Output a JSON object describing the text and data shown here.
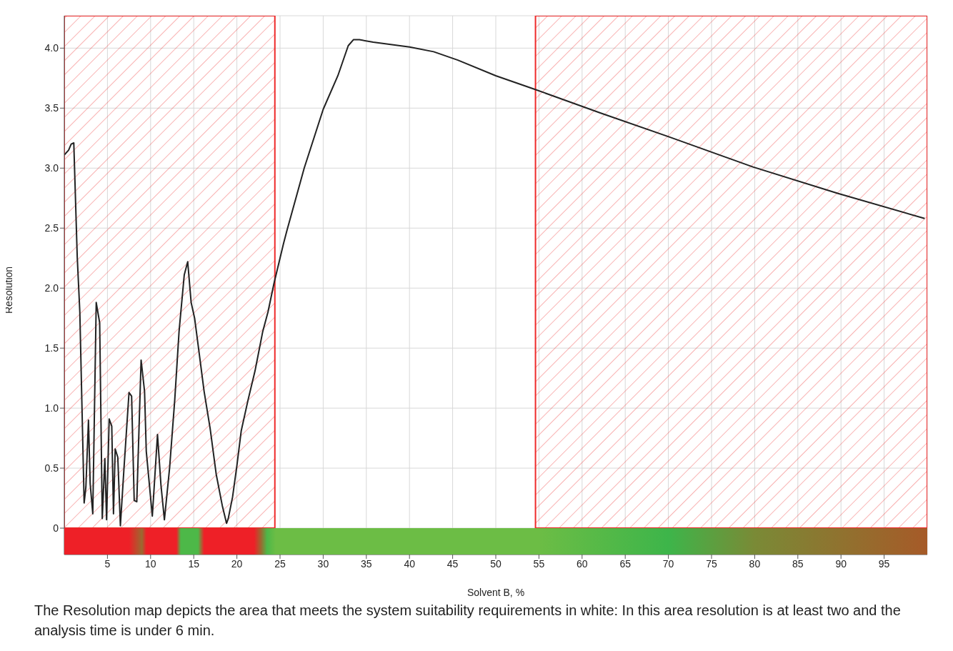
{
  "chart_data": {
    "type": "line",
    "xlabel": "Solvent B, %",
    "ylabel": "Resolution",
    "annotations": [
      "The Resolution map depicts the area that meets the system suitability requirements in white: In this area resolution is at least two and the analysis time is under 6 min."
    ],
    "x": [
      0,
      0.5,
      0.8,
      1.1,
      1.5,
      1.8,
      2.3,
      2.5,
      2.8,
      3.0,
      3.3,
      3.7,
      4.1,
      4.4,
      4.7,
      4.9,
      5.2,
      5.5,
      5.7,
      5.9,
      6.2,
      6.5,
      6.9,
      7.5,
      7.8,
      8.1,
      8.4,
      8.9,
      9.3,
      9.5,
      10.2,
      10.8,
      11.2,
      11.6,
      12.2,
      12.8,
      13.3,
      13.9,
      14.3,
      14.7,
      15.1,
      15.5,
      16.2,
      16.9,
      17.6,
      18.3,
      18.8,
      19.0,
      19.5,
      20.0,
      20.5,
      21.3,
      22.1,
      23.0,
      23.6,
      24.3,
      25.4,
      25.8,
      27.8,
      30.0,
      31.7,
      32.9,
      33.5,
      34.2,
      35.8,
      40.0,
      42.8,
      45.6,
      50.0,
      54.4,
      56.7,
      62.1,
      70.1,
      79.8,
      89.6,
      99.7
    ],
    "series": [
      {
        "color": "#222222",
        "values": [
          3.11,
          3.15,
          3.2,
          3.21,
          2.26,
          1.8,
          0.21,
          0.34,
          0.9,
          0.37,
          0.12,
          1.88,
          1.71,
          0.08,
          0.58,
          0.07,
          0.91,
          0.85,
          0.12,
          0.66,
          0.59,
          0.02,
          0.48,
          1.13,
          1.1,
          0.23,
          0.22,
          1.4,
          1.14,
          0.64,
          0.1,
          0.78,
          0.36,
          0.07,
          0.5,
          1.07,
          1.64,
          2.11,
          2.22,
          1.88,
          1.75,
          1.53,
          1.14,
          0.83,
          0.45,
          0.19,
          0.04,
          0.08,
          0.26,
          0.52,
          0.81,
          1.07,
          1.31,
          1.64,
          1.8,
          2.04,
          2.37,
          2.48,
          3.0,
          3.49,
          3.77,
          4.02,
          4.07,
          4.07,
          4.05,
          4.01,
          3.97,
          3.9,
          3.77,
          3.66,
          3.6,
          3.46,
          3.26,
          3.01,
          2.79,
          2.58
        ]
      }
    ],
    "xlim": [
      0,
      100
    ],
    "xticks": [
      5,
      10,
      15,
      20,
      25,
      30,
      35,
      40,
      45,
      50,
      55,
      60,
      65,
      70,
      75,
      80,
      85,
      90,
      95
    ],
    "ylim": [
      -0.22,
      4.27
    ],
    "yticks": [
      0,
      {
        "value": 0.5,
        "label": "0.5"
      },
      {
        "value": 1,
        "label": "1.0"
      },
      {
        "value": 1.5,
        "label": "1.5"
      },
      {
        "value": 2,
        "label": "2.0"
      },
      {
        "value": 2.5,
        "label": "2.5"
      },
      {
        "value": 3,
        "label": "3.0"
      },
      {
        "value": 3.5,
        "label": "3.5"
      },
      {
        "value": 4,
        "label": "4.0"
      }
    ],
    "bands": [
      {
        "axis": "x",
        "from": 0,
        "to": 24.4,
        "color": "#ee2a2a"
      },
      {
        "axis": "x",
        "from": 54.6,
        "to": 100,
        "color": "#ee2a2a"
      }
    ],
    "grid": true,
    "marker": "none",
    "line_style": "solid"
  }
}
